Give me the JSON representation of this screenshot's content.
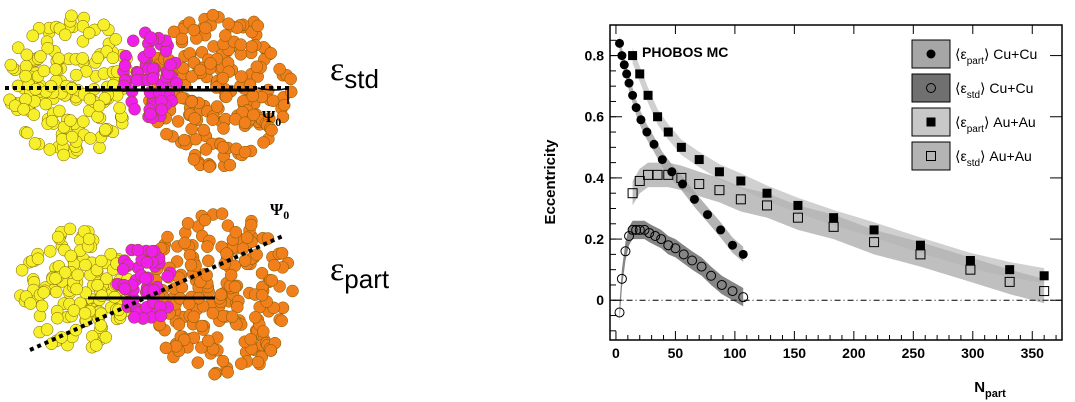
{
  "illustrations": {
    "top": {
      "label_main": "ε",
      "label_sub": "std",
      "angle_main": "Ψ",
      "angle_sub": "0"
    },
    "bottom": {
      "label_main": "ε",
      "label_sub": "part",
      "angle_main": "Ψ",
      "angle_sub": "0"
    },
    "colors": {
      "nucleus_a": "#f5f02a",
      "nucleus_b": "#f07f1c",
      "overlap": "#ee1fe8"
    }
  },
  "chart_data": {
    "type": "scatter",
    "annotation": "PHOBOS MC",
    "xlabel": "N",
    "xlabel_sub": "part",
    "ylabel": "Eccentricity",
    "xlim": [
      -5,
      375
    ],
    "ylim": [
      -0.13,
      0.9
    ],
    "xticks": [
      0,
      50,
      100,
      150,
      200,
      250,
      300,
      350
    ],
    "yticks": [
      0,
      0.2,
      0.4,
      0.6,
      0.8
    ],
    "zero_line": "dash-dot",
    "legend_position": "top-right",
    "series": [
      {
        "name": "Cu+Cu",
        "legend_main": "⟨ε",
        "legend_sub": "part",
        "legend_tail": "⟩ Cu+Cu",
        "marker": "filled-circle",
        "band_color": "#a6a6a6",
        "x": [
          3,
          5,
          7,
          9,
          11,
          14,
          17,
          21,
          26,
          32,
          39,
          47,
          56,
          66,
          77,
          88,
          98,
          107
        ],
        "y": [
          0.84,
          0.8,
          0.77,
          0.74,
          0.71,
          0.67,
          0.63,
          0.59,
          0.55,
          0.51,
          0.46,
          0.42,
          0.38,
          0.33,
          0.28,
          0.23,
          0.18,
          0.15
        ]
      },
      {
        "name": "Cu+Cu",
        "legend_main": "⟨ε",
        "legend_sub": "std",
        "legend_tail": "⟩ Cu+Cu",
        "marker": "open-circle",
        "band_color": "#707070",
        "x": [
          3,
          5,
          8,
          11,
          14,
          17,
          20,
          24,
          28,
          33,
          38,
          44,
          50,
          57,
          64,
          72,
          80,
          89,
          98,
          107
        ],
        "y": [
          -0.04,
          0.07,
          0.16,
          0.21,
          0.23,
          0.23,
          0.23,
          0.23,
          0.22,
          0.21,
          0.2,
          0.18,
          0.17,
          0.15,
          0.13,
          0.11,
          0.08,
          0.05,
          0.03,
          0.01
        ]
      },
      {
        "name": "Au+Au",
        "legend_main": "⟨ε",
        "legend_sub": "part",
        "legend_tail": "⟩ Au+Au",
        "marker": "filled-square",
        "band_color": "#c8c8c8",
        "x": [
          14,
          20,
          27,
          35,
          44,
          55,
          70,
          87,
          105,
          127,
          153,
          183,
          217,
          256,
          298,
          331,
          360
        ],
        "y": [
          0.8,
          0.74,
          0.67,
          0.6,
          0.55,
          0.5,
          0.46,
          0.42,
          0.39,
          0.35,
          0.31,
          0.27,
          0.23,
          0.18,
          0.13,
          0.1,
          0.08
        ]
      },
      {
        "name": "Au+Au",
        "legend_main": "⟨ε",
        "legend_sub": "std",
        "legend_tail": "⟩ Au+Au",
        "marker": "open-square",
        "band_color": "#b4b4b4",
        "x": [
          14,
          20,
          27,
          35,
          44,
          55,
          70,
          87,
          105,
          127,
          153,
          183,
          217,
          256,
          298,
          331,
          360
        ],
        "y": [
          0.35,
          0.39,
          0.41,
          0.41,
          0.41,
          0.4,
          0.38,
          0.36,
          0.33,
          0.31,
          0.27,
          0.24,
          0.19,
          0.15,
          0.1,
          0.06,
          0.03
        ]
      }
    ]
  }
}
